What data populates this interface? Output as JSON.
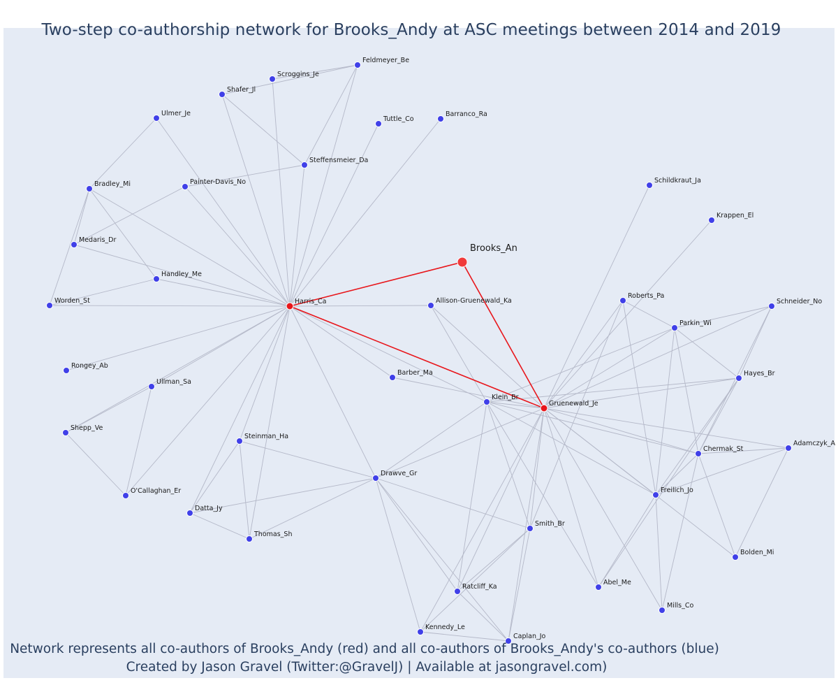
{
  "title": "Two-step co-authorship network for Brooks_Andy at ASC meetings between 2014 and 2019",
  "footer": {
    "line1": "Network represents all co-authors of Brooks_Andy (red) and all co-authors of Brooks_Andy's co-authors (blue)",
    "line2": "Created by Jason Gravel (Twitter:@GravelJ) | Available at jasongravel.com)"
  },
  "colors": {
    "background": "#e5ebf5",
    "center_node": "#f03a3a",
    "coauthor_node": "#e8161b",
    "second_step_node": "#4040e8",
    "direct_edge": "#e8161b",
    "edge": "#b4b8c8",
    "text": "#2a3f5f"
  },
  "chart_data": {
    "type": "network",
    "center": "Brooks_An",
    "nodes": [
      {
        "id": "Brooks_An",
        "label": "Brooks_An",
        "group": "center"
      },
      {
        "id": "Harris_Ca",
        "label": "Harris_Ca",
        "group": "coauthor"
      },
      {
        "id": "Gruenewald_Je",
        "label": "Gruenewald_Je",
        "group": "coauthor"
      },
      {
        "id": "Feldmeyer_Be",
        "label": "Feldmeyer_Be",
        "group": "second"
      },
      {
        "id": "Scroggins_Je",
        "label": "Scroggins_Je",
        "group": "second"
      },
      {
        "id": "Shafer_Jl",
        "label": "Shafer_Jl",
        "group": "second"
      },
      {
        "id": "Tuttle_Co",
        "label": "Tuttle_Co",
        "group": "second"
      },
      {
        "id": "Barranco_Ra",
        "label": "Barranco_Ra",
        "group": "second"
      },
      {
        "id": "Ulmer_Je",
        "label": "Ulmer_Je",
        "group": "second"
      },
      {
        "id": "Steffensmeier_Da",
        "label": "Steffensmeier_Da",
        "group": "second"
      },
      {
        "id": "Bradley_Mi",
        "label": "Bradley_Mi",
        "group": "second"
      },
      {
        "id": "Painter-Davis_No",
        "label": "Painter-Davis_No",
        "group": "second"
      },
      {
        "id": "Medaris_Dr",
        "label": "Medaris_Dr",
        "group": "second"
      },
      {
        "id": "Handley_Me",
        "label": "Handley_Me",
        "group": "second"
      },
      {
        "id": "Worden_St",
        "label": "Worden_St",
        "group": "second"
      },
      {
        "id": "Allison-Gruenewald_Ka",
        "label": "Allison-Gruenewald_Ka",
        "group": "second"
      },
      {
        "id": "Rongey_Ab",
        "label": "Rongey_Ab",
        "group": "second"
      },
      {
        "id": "Barber_Ma",
        "label": "Barber_Ma",
        "group": "second"
      },
      {
        "id": "Ullman_Sa",
        "label": "Ullman_Sa",
        "group": "second"
      },
      {
        "id": "Shepp_Ve",
        "label": "Shepp_Ve",
        "group": "second"
      },
      {
        "id": "Steinman_Ha",
        "label": "Steinman_Ha",
        "group": "second"
      },
      {
        "id": "O'Callaghan_Er",
        "label": "O'Callaghan_Er",
        "group": "second"
      },
      {
        "id": "Datta_Jy",
        "label": "Datta_Jy",
        "group": "second"
      },
      {
        "id": "Thomas_Sh",
        "label": "Thomas_Sh",
        "group": "second"
      },
      {
        "id": "Drawve_Gr",
        "label": "Drawve_Gr",
        "group": "second"
      },
      {
        "id": "Klein_Br",
        "label": "Klein_Br",
        "group": "second"
      },
      {
        "id": "Schildkraut_Ja",
        "label": "Schildkraut_Ja",
        "group": "second"
      },
      {
        "id": "Krappen_El",
        "label": "Krappen_El",
        "group": "second"
      },
      {
        "id": "Roberts_Pa",
        "label": "Roberts_Pa",
        "group": "second"
      },
      {
        "id": "Schneider_No",
        "label": "Schneider_No",
        "group": "second"
      },
      {
        "id": "Parkin_Wi",
        "label": "Parkin_Wi",
        "group": "second"
      },
      {
        "id": "Hayes_Br",
        "label": "Hayes_Br",
        "group": "second"
      },
      {
        "id": "Adamczyk_A",
        "label": "Adamczyk_A",
        "group": "second"
      },
      {
        "id": "Chermak_St",
        "label": "Chermak_St",
        "group": "second"
      },
      {
        "id": "Freilich_Jo",
        "label": "Freilich_Jo",
        "group": "second"
      },
      {
        "id": "Smith_Br",
        "label": "Smith_Br",
        "group": "second"
      },
      {
        "id": "Bolden_Mi",
        "label": "Bolden_Mi",
        "group": "second"
      },
      {
        "id": "Abel_Me",
        "label": "Abel_Me",
        "group": "second"
      },
      {
        "id": "Ratcliff_Ka",
        "label": "Ratcliff_Ka",
        "group": "second"
      },
      {
        "id": "Mills_Co",
        "label": "Mills_Co",
        "group": "second"
      },
      {
        "id": "Kennedy_Le",
        "label": "Kennedy_Le",
        "group": "second"
      },
      {
        "id": "Caplan_Jo",
        "label": "Caplan_Jo",
        "group": "second"
      }
    ],
    "edges": [
      [
        "Brooks_An",
        "Harris_Ca"
      ],
      [
        "Brooks_An",
        "Gruenewald_Je"
      ],
      [
        "Harris_Ca",
        "Gruenewald_Je"
      ],
      [
        "Harris_Ca",
        "Feldmeyer_Be"
      ],
      [
        "Harris_Ca",
        "Scroggins_Je"
      ],
      [
        "Harris_Ca",
        "Shafer_Jl"
      ],
      [
        "Harris_Ca",
        "Barranco_Ra"
      ],
      [
        "Harris_Ca",
        "Tuttle_Co"
      ],
      [
        "Harris_Ca",
        "Ulmer_Je"
      ],
      [
        "Harris_Ca",
        "Steffensmeier_Da"
      ],
      [
        "Harris_Ca",
        "Bradley_Mi"
      ],
      [
        "Harris_Ca",
        "Painter-Davis_No"
      ],
      [
        "Harris_Ca",
        "Medaris_Dr"
      ],
      [
        "Harris_Ca",
        "Handley_Me"
      ],
      [
        "Harris_Ca",
        "Worden_St"
      ],
      [
        "Harris_Ca",
        "Allison-Gruenewald_Ka"
      ],
      [
        "Harris_Ca",
        "Rongey_Ab"
      ],
      [
        "Harris_Ca",
        "Barber_Ma"
      ],
      [
        "Harris_Ca",
        "Ullman_Sa"
      ],
      [
        "Harris_Ca",
        "Shepp_Ve"
      ],
      [
        "Harris_Ca",
        "Steinman_Ha"
      ],
      [
        "Harris_Ca",
        "O'Callaghan_Er"
      ],
      [
        "Harris_Ca",
        "Datta_Jy"
      ],
      [
        "Harris_Ca",
        "Thomas_Sh"
      ],
      [
        "Harris_Ca",
        "Drawve_Gr"
      ],
      [
        "Harris_Ca",
        "Klein_Br"
      ],
      [
        "Shafer_Jl",
        "Feldmeyer_Be"
      ],
      [
        "Shafer_Jl",
        "Steffensmeier_Da"
      ],
      [
        "Scroggins_Je",
        "Feldmeyer_Be"
      ],
      [
        "Steffensmeier_Da",
        "Feldmeyer_Be"
      ],
      [
        "Steffensmeier_Da",
        "Painter-Davis_No"
      ],
      [
        "Ulmer_Je",
        "Bradley_Mi"
      ],
      [
        "Bradley_Mi",
        "Medaris_Dr"
      ],
      [
        "Bradley_Mi",
        "Handley_Me"
      ],
      [
        "Bradley_Mi",
        "Worden_St"
      ],
      [
        "Medaris_Dr",
        "Painter-Davis_No"
      ],
      [
        "Worden_St",
        "Handley_Me"
      ],
      [
        "Ullman_Sa",
        "Shepp_Ve"
      ],
      [
        "Ullman_Sa",
        "O'Callaghan_Er"
      ],
      [
        "Shepp_Ve",
        "O'Callaghan_Er"
      ],
      [
        "Steinman_Ha",
        "Datta_Jy"
      ],
      [
        "Steinman_Ha",
        "Thomas_Sh"
      ],
      [
        "Steinman_Ha",
        "Drawve_Gr"
      ],
      [
        "Datta_Jy",
        "Drawve_Gr"
      ],
      [
        "Datta_Jy",
        "Thomas_Sh"
      ],
      [
        "Thomas_Sh",
        "Drawve_Gr"
      ],
      [
        "Drawve_Gr",
        "Gruenewald_Je"
      ],
      [
        "Drawve_Gr",
        "Klein_Br"
      ],
      [
        "Drawve_Gr",
        "Smith_Br"
      ],
      [
        "Drawve_Gr",
        "Ratcliff_Ka"
      ],
      [
        "Drawve_Gr",
        "Kennedy_Le"
      ],
      [
        "Drawve_Gr",
        "Caplan_Jo"
      ],
      [
        "Allison-Gruenewald_Ka",
        "Gruenewald_Je"
      ],
      [
        "Allison-Gruenewald_Ka",
        "Klein_Br"
      ],
      [
        "Barber_Ma",
        "Gruenewald_Je"
      ],
      [
        "Klein_Br",
        "Gruenewald_Je"
      ],
      [
        "Klein_Br",
        "Parkin_Wi"
      ],
      [
        "Klein_Br",
        "Hayes_Br"
      ],
      [
        "Klein_Br",
        "Chermak_St"
      ],
      [
        "Klein_Br",
        "Freilich_Jo"
      ],
      [
        "Klein_Br",
        "Smith_Br"
      ],
      [
        "Klein_Br",
        "Abel_Me"
      ],
      [
        "Klein_Br",
        "Ratcliff_Ka"
      ],
      [
        "Gruenewald_Je",
        "Schildkraut_Ja"
      ],
      [
        "Gruenewald_Je",
        "Krappen_El"
      ],
      [
        "Gruenewald_Je",
        "Roberts_Pa"
      ],
      [
        "Gruenewald_Je",
        "Schneider_No"
      ],
      [
        "Gruenewald_Je",
        "Parkin_Wi"
      ],
      [
        "Gruenewald_Je",
        "Hayes_Br"
      ],
      [
        "Gruenewald_Je",
        "Adamczyk_A"
      ],
      [
        "Gruenewald_Je",
        "Chermak_St"
      ],
      [
        "Gruenewald_Je",
        "Freilich_Jo"
      ],
      [
        "Gruenewald_Je",
        "Bolden_Mi"
      ],
      [
        "Gruenewald_Je",
        "Smith_Br"
      ],
      [
        "Gruenewald_Je",
        "Abel_Me"
      ],
      [
        "Gruenewald_Je",
        "Ratcliff_Ka"
      ],
      [
        "Gruenewald_Je",
        "Mills_Co"
      ],
      [
        "Gruenewald_Je",
        "Kennedy_Le"
      ],
      [
        "Gruenewald_Je",
        "Caplan_Jo"
      ],
      [
        "Roberts_Pa",
        "Parkin_Wi"
      ],
      [
        "Roberts_Pa",
        "Smith_Br"
      ],
      [
        "Roberts_Pa",
        "Freilich_Jo"
      ],
      [
        "Parkin_Wi",
        "Schneider_No"
      ],
      [
        "Parkin_Wi",
        "Hayes_Br"
      ],
      [
        "Parkin_Wi",
        "Chermak_St"
      ],
      [
        "Parkin_Wi",
        "Freilich_Jo"
      ],
      [
        "Schneider_No",
        "Hayes_Br"
      ],
      [
        "Schneider_No",
        "Chermak_St"
      ],
      [
        "Hayes_Br",
        "Chermak_St"
      ],
      [
        "Hayes_Br",
        "Freilich_Jo"
      ],
      [
        "Hayes_Br",
        "Abel_Me"
      ],
      [
        "Adamczyk_A",
        "Chermak_St"
      ],
      [
        "Adamczyk_A",
        "Freilich_Jo"
      ],
      [
        "Adamczyk_A",
        "Bolden_Mi"
      ],
      [
        "Chermak_St",
        "Freilich_Jo"
      ],
      [
        "Chermak_St",
        "Bolden_Mi"
      ],
      [
        "Chermak_St",
        "Mills_Co"
      ],
      [
        "Freilich_Jo",
        "Abel_Me"
      ],
      [
        "Freilich_Jo",
        "Mills_Co"
      ],
      [
        "Smith_Br",
        "Ratcliff_Ka"
      ],
      [
        "Smith_Br",
        "Kennedy_Le"
      ],
      [
        "Smith_Br",
        "Caplan_Jo"
      ],
      [
        "Kennedy_Le",
        "Caplan_Jo"
      ],
      [
        "Ratcliff_Ka",
        "Caplan_Jo"
      ]
    ]
  }
}
